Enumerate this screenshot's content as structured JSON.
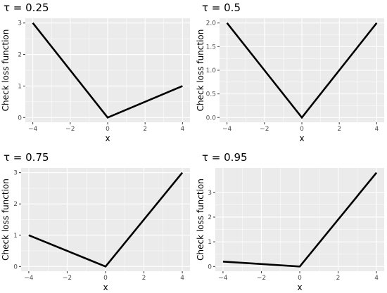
{
  "chart_data": [
    {
      "type": "line",
      "title": "τ = 0.25",
      "xlabel": "x",
      "ylabel": "Check loss function",
      "tau": 0.25,
      "x": [
        -4,
        0,
        4
      ],
      "series": [
        {
          "values": [
            3,
            0,
            1
          ]
        }
      ],
      "xlim": [
        -4.4,
        4.4
      ],
      "ylim": [
        -0.15,
        3.15
      ],
      "x_ticks": [
        -4,
        -2,
        0,
        2,
        4
      ],
      "y_ticks": [
        0,
        1,
        2,
        3
      ],
      "x_tick_labels": [
        "−4",
        "−2",
        "0",
        "2",
        "4"
      ],
      "y_tick_labels": [
        "0",
        "1",
        "2",
        "3"
      ],
      "grid": true,
      "line_color": "#000000"
    },
    {
      "type": "line",
      "title": "τ = 0.5",
      "xlabel": "x",
      "ylabel": "Check loss function",
      "tau": 0.5,
      "x": [
        -4,
        0,
        4
      ],
      "series": [
        {
          "values": [
            2,
            0,
            2
          ]
        }
      ],
      "xlim": [
        -4.4,
        4.4
      ],
      "ylim": [
        -0.1,
        2.1
      ],
      "x_ticks": [
        -4,
        -2,
        0,
        2,
        4
      ],
      "y_ticks": [
        0,
        0.5,
        1,
        1.5,
        2
      ],
      "x_tick_labels": [
        "−4",
        "−2",
        "0",
        "2",
        "4"
      ],
      "y_tick_labels": [
        "0.0",
        "0.5",
        "1.0",
        "1.5",
        "2.0"
      ],
      "grid": true,
      "line_color": "#000000"
    },
    {
      "type": "line",
      "title": "τ = 0.75",
      "xlabel": "x",
      "ylabel": "Check loss function",
      "tau": 0.75,
      "x": [
        -4,
        0,
        4
      ],
      "series": [
        {
          "values": [
            1,
            0,
            3
          ]
        }
      ],
      "xlim": [
        -4.4,
        4.4
      ],
      "ylim": [
        -0.15,
        3.15
      ],
      "x_ticks": [
        -4,
        -2,
        0,
        2,
        4
      ],
      "y_ticks": [
        0,
        1,
        2,
        3
      ],
      "x_tick_labels": [
        "−4",
        "−2",
        "0",
        "2",
        "4"
      ],
      "y_tick_labels": [
        "0",
        "1",
        "2",
        "3"
      ],
      "grid": true,
      "line_color": "#000000"
    },
    {
      "type": "line",
      "title": "τ = 0.95",
      "xlabel": "x",
      "ylabel": "Check loss function",
      "tau": 0.95,
      "x": [
        -4,
        0,
        4
      ],
      "series": [
        {
          "values": [
            0.2,
            0,
            3.8
          ]
        }
      ],
      "xlim": [
        -4.4,
        4.4
      ],
      "ylim": [
        -0.19,
        3.99
      ],
      "x_ticks": [
        -4,
        -2,
        0,
        2,
        4
      ],
      "y_ticks": [
        0,
        1,
        2,
        3
      ],
      "x_tick_labels": [
        "−4",
        "−2",
        "0",
        "2",
        "4"
      ],
      "y_tick_labels": [
        "0",
        "1",
        "2",
        "3"
      ],
      "grid": true,
      "line_color": "#000000"
    }
  ]
}
